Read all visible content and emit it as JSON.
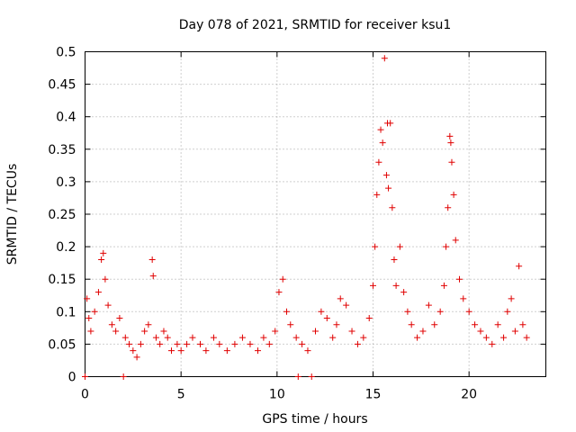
{
  "chart_data": {
    "type": "scatter",
    "title": "Day 078 of 2021, SRMTID for receiver ksu1",
    "xlabel": "GPS time / hours",
    "ylabel": "SRMTID / TECUs",
    "xlim": [
      0,
      24
    ],
    "ylim": [
      0,
      0.5
    ],
    "x_ticks": [
      0,
      5,
      10,
      15,
      20
    ],
    "y_ticks": [
      0,
      0.05,
      0.1,
      0.15,
      0.2,
      0.25,
      0.3,
      0.35,
      0.4,
      0.45,
      0.5
    ],
    "grid": true,
    "marker": "plus",
    "color": "#e00000",
    "series": [
      {
        "name": "ksu1",
        "x": [
          0.0,
          0.1,
          0.2,
          0.3,
          0.5,
          0.7,
          0.85,
          0.95,
          1.05,
          1.2,
          1.4,
          1.6,
          1.8,
          2.0,
          2.1,
          2.3,
          2.5,
          2.7,
          2.9,
          3.1,
          3.3,
          3.5,
          3.55,
          3.7,
          3.9,
          4.1,
          4.3,
          4.5,
          4.8,
          5.0,
          5.3,
          5.6,
          6.0,
          6.3,
          6.7,
          7.0,
          7.4,
          7.8,
          8.2,
          8.6,
          9.0,
          9.3,
          9.6,
          9.9,
          10.1,
          10.3,
          10.5,
          10.7,
          11.0,
          11.1,
          11.3,
          11.6,
          11.8,
          12.0,
          12.3,
          12.6,
          12.9,
          13.1,
          13.3,
          13.6,
          13.9,
          14.2,
          14.5,
          14.8,
          15.0,
          15.1,
          15.2,
          15.3,
          15.4,
          15.5,
          15.6,
          15.7,
          15.75,
          15.8,
          15.9,
          16.0,
          16.1,
          16.2,
          16.4,
          16.6,
          16.8,
          17.0,
          17.3,
          17.6,
          17.9,
          18.2,
          18.5,
          18.7,
          18.8,
          18.9,
          19.0,
          19.05,
          19.1,
          19.2,
          19.3,
          19.5,
          19.7,
          20.0,
          20.3,
          20.6,
          20.9,
          21.2,
          21.5,
          21.8,
          22.0,
          22.2,
          22.4,
          22.6,
          22.8,
          23.0
        ],
        "y": [
          0.0,
          0.12,
          0.09,
          0.07,
          0.1,
          0.13,
          0.18,
          0.19,
          0.15,
          0.11,
          0.08,
          0.07,
          0.09,
          0.0,
          0.06,
          0.05,
          0.04,
          0.03,
          0.05,
          0.07,
          0.08,
          0.18,
          0.155,
          0.06,
          0.05,
          0.07,
          0.06,
          0.04,
          0.05,
          0.04,
          0.05,
          0.06,
          0.05,
          0.04,
          0.06,
          0.05,
          0.04,
          0.05,
          0.06,
          0.05,
          0.04,
          0.06,
          0.05,
          0.07,
          0.13,
          0.15,
          0.1,
          0.08,
          0.06,
          0.0,
          0.05,
          0.04,
          0.0,
          0.07,
          0.1,
          0.09,
          0.06,
          0.08,
          0.12,
          0.11,
          0.07,
          0.05,
          0.06,
          0.09,
          0.14,
          0.2,
          0.28,
          0.33,
          0.38,
          0.36,
          0.49,
          0.31,
          0.39,
          0.29,
          0.39,
          0.26,
          0.18,
          0.14,
          0.2,
          0.13,
          0.1,
          0.08,
          0.06,
          0.07,
          0.11,
          0.08,
          0.1,
          0.14,
          0.2,
          0.26,
          0.37,
          0.36,
          0.33,
          0.28,
          0.21,
          0.15,
          0.12,
          0.1,
          0.08,
          0.07,
          0.06,
          0.05,
          0.08,
          0.06,
          0.1,
          0.12,
          0.07,
          0.17,
          0.08,
          0.06
        ]
      }
    ]
  }
}
